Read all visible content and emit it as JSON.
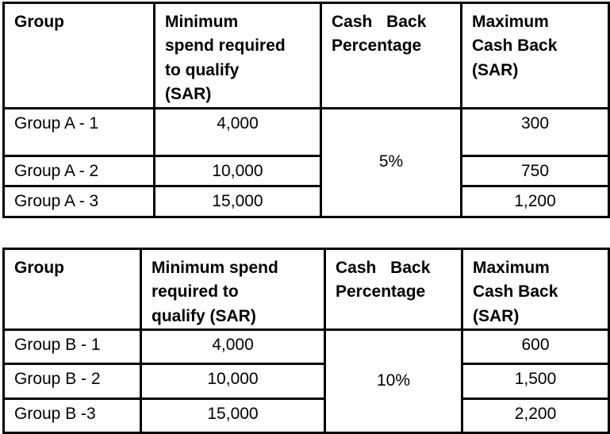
{
  "page": {
    "background_color": "#ffffff",
    "border_color": "#000000",
    "text_color": "#000000"
  },
  "tables": [
    {
      "name": "group-a-cashback-tiers",
      "headers": {
        "group": "Group",
        "min_spend": "Minimum\nspend required\nto qualify\n(SAR)",
        "cashback_pct": "Cash Back\nPercentage",
        "max_cashback": "Maximum\nCash Back\n(SAR)"
      },
      "cashback_percentage": "5%",
      "rows": [
        {
          "group": "Group A - 1",
          "min_spend": "4,000",
          "max_cashback": "300"
        },
        {
          "group": "Group A - 2",
          "min_spend": "10,000",
          "max_cashback": "750"
        },
        {
          "group": "Group A - 3",
          "min_spend": "15,000",
          "max_cashback": "1,200"
        }
      ]
    },
    {
      "name": "group-b-cashback-tiers",
      "headers": {
        "group": "Group",
        "min_spend": "Minimum spend\nrequired to\nqualify (SAR)",
        "cashback_pct": "Cash Back\nPercentage",
        "max_cashback": "Maximum\nCash Back\n(SAR)"
      },
      "cashback_percentage": "10%",
      "rows": [
        {
          "group": "Group B - 1",
          "min_spend": "4,000",
          "max_cashback": "600"
        },
        {
          "group": "Group B - 2",
          "min_spend": "10,000",
          "max_cashback": "1,500"
        },
        {
          "group": "Group B -3",
          "min_spend": "15,000",
          "max_cashback": "2,200"
        }
      ]
    }
  ]
}
